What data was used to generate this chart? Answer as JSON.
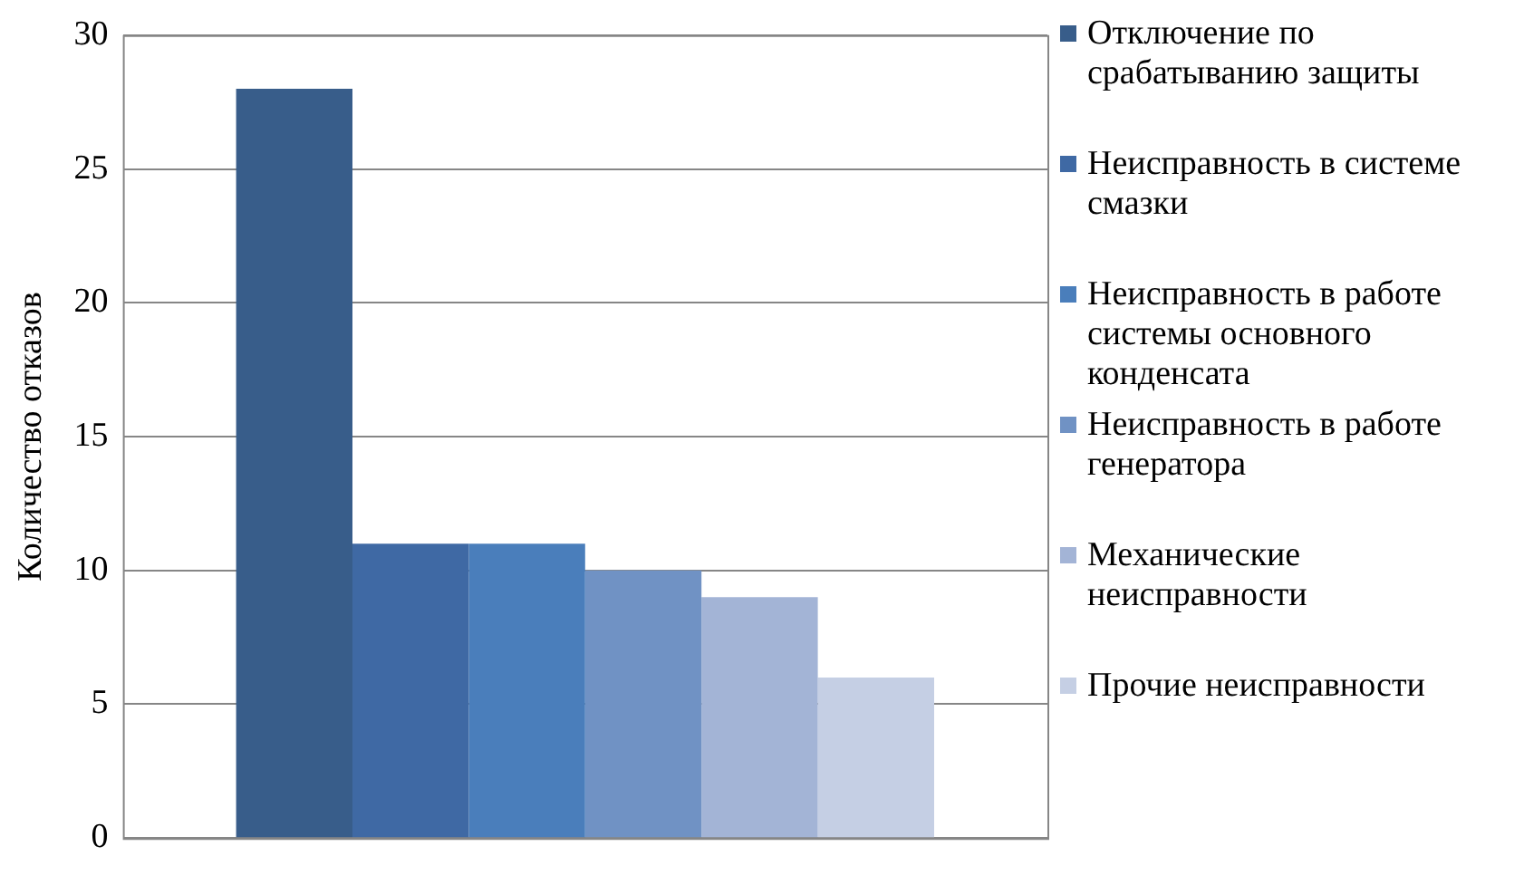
{
  "chart_data": {
    "type": "bar",
    "ylabel": "Количество отказов",
    "categories": [
      null
    ],
    "series": [
      {
        "name": "Отключение по срабатыванию защиты",
        "color": "#385d8a",
        "values": [
          28
        ]
      },
      {
        "name": "Неисправность в системе смазки",
        "color": "#3f69a4",
        "values": [
          11
        ]
      },
      {
        "name": "Неисправность в работе системы основного конденсата",
        "color": "#4a7ebb",
        "values": [
          11
        ]
      },
      {
        "name": "Неисправность в работе генератора",
        "color": "#7092c4",
        "values": [
          10
        ]
      },
      {
        "name": "Механические неисправности",
        "color": "#a3b4d6",
        "values": [
          9
        ]
      },
      {
        "name": "Прочие неисправности",
        "color": "#c5cfe4",
        "values": [
          6
        ]
      }
    ],
    "ylim": [
      0,
      30
    ],
    "yticks": [
      0,
      5,
      10,
      15,
      20,
      25,
      30
    ],
    "grid": "y",
    "legend": "right"
  }
}
